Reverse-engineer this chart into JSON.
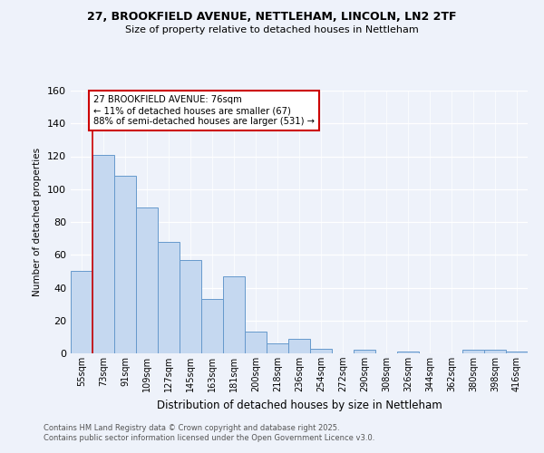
{
  "title_line1": "27, BROOKFIELD AVENUE, NETTLEHAM, LINCOLN, LN2 2TF",
  "title_line2": "Size of property relative to detached houses in Nettleham",
  "xlabel": "Distribution of detached houses by size in Nettleham",
  "ylabel": "Number of detached properties",
  "bar_labels": [
    "55sqm",
    "73sqm",
    "91sqm",
    "109sqm",
    "127sqm",
    "145sqm",
    "163sqm",
    "181sqm",
    "200sqm",
    "218sqm",
    "236sqm",
    "254sqm",
    "272sqm",
    "290sqm",
    "308sqm",
    "326sqm",
    "344sqm",
    "362sqm",
    "380sqm",
    "398sqm",
    "416sqm"
  ],
  "bar_values": [
    50,
    121,
    108,
    89,
    68,
    57,
    33,
    47,
    13,
    6,
    9,
    3,
    0,
    2,
    0,
    1,
    0,
    0,
    2,
    2,
    1
  ],
  "bar_color": "#c5d8f0",
  "bar_edge_color": "#6699cc",
  "property_label": "27 BROOKFIELD AVENUE: 76sqm",
  "annotation_line1": "← 11% of detached houses are smaller (67)",
  "annotation_line2": "88% of semi-detached houses are larger (531) →",
  "vline_color": "#cc0000",
  "vline_x": 1.0,
  "annotation_box_color": "#cc0000",
  "footnote_line1": "Contains HM Land Registry data © Crown copyright and database right 2025.",
  "footnote_line2": "Contains public sector information licensed under the Open Government Licence v3.0.",
  "ylim": [
    0,
    160
  ],
  "background_color": "#eef2fa"
}
